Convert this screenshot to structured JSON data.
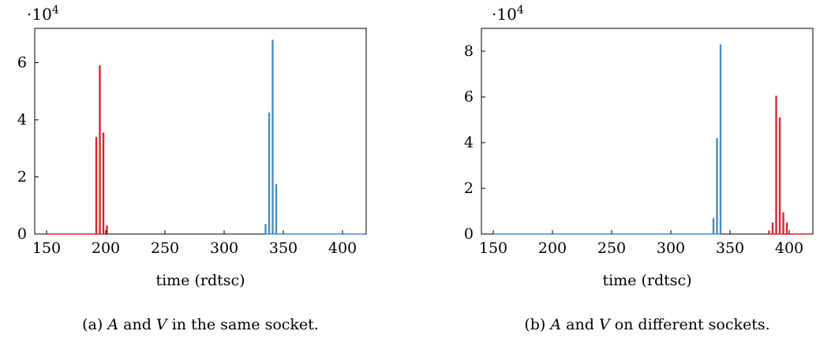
{
  "colors": {
    "series_a": "#d62728",
    "series_b": "#4a8cc7"
  },
  "chart_data": [
    {
      "type": "bar",
      "xlabel": "time (rdtsc)",
      "ylabel": "",
      "y_multiplier": "10",
      "y_multiplier_exp": "4",
      "xlim": [
        140,
        420
      ],
      "ylim": [
        0,
        72000
      ],
      "xticks": [
        150,
        200,
        250,
        300,
        350,
        400
      ],
      "yticks": [
        0,
        20000,
        40000,
        60000
      ],
      "ytick_labels": [
        "0",
        "2",
        "4",
        "6"
      ],
      "series": [
        {
          "color": "#d62728",
          "x": [
            192,
            195,
            198,
            201
          ],
          "values": [
            34000,
            59000,
            35500,
            3000
          ]
        },
        {
          "color": "#4a8cc7",
          "x": [
            335,
            338,
            341,
            344
          ],
          "values": [
            3500,
            42500,
            68000,
            17500
          ]
        }
      ],
      "caption": {
        "label": "(a)",
        "var1": "A",
        "and": "and",
        "var2": "V",
        "rest": "in the same socket."
      }
    },
    {
      "type": "bar",
      "xlabel": "time (rdtsc)",
      "ylabel": "",
      "y_multiplier": "10",
      "y_multiplier_exp": "4",
      "xlim": [
        140,
        420
      ],
      "ylim": [
        0,
        90000
      ],
      "xticks": [
        150,
        200,
        250,
        300,
        350,
        400
      ],
      "yticks": [
        0,
        20000,
        40000,
        60000,
        80000
      ],
      "ytick_labels": [
        "0",
        "2",
        "4",
        "6",
        "8"
      ],
      "series": [
        {
          "color": "#4a8cc7",
          "x": [
            336,
            339,
            342
          ],
          "values": [
            7000,
            42000,
            83000
          ]
        },
        {
          "color": "#d62728",
          "x": [
            383,
            386,
            389,
            392,
            395,
            398
          ],
          "values": [
            1500,
            5000,
            60500,
            51000,
            9500,
            5000
          ]
        }
      ],
      "caption": {
        "label": "(b)",
        "var1": "A",
        "and": "and",
        "var2": "V",
        "rest": "on different sockets."
      }
    }
  ]
}
